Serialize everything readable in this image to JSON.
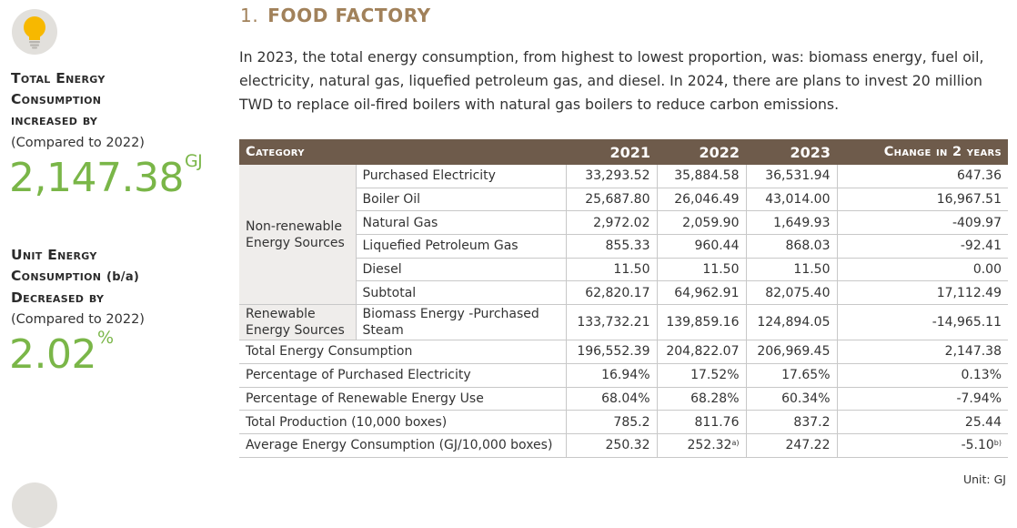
{
  "sidebar": {
    "icon": "lightbulb-icon",
    "kpi1": {
      "line1": "Total Energy",
      "line2": "Consumption",
      "line3": "increased by",
      "sub": "(Compared to 2022)",
      "value": "2,147.38",
      "unit": "GJ"
    },
    "kpi2": {
      "line1": "Unit Energy",
      "line2a": "Consumption",
      "line2b": "(b/a)",
      "line3": "Decreased by",
      "sub": "(Compared to 2022)",
      "value": "2.02",
      "unit": "%"
    }
  },
  "section": {
    "number": "1.",
    "title": "FOOD FACTORY",
    "intro": "In 2023, the total energy consumption, from highest to lowest proportion, was: biomass energy, fuel oil, electricity, natural gas, liquefied petroleum gas, and diesel. In 2024, there are plans to invest 20 million TWD to replace oil-fired boilers with natural gas boilers to reduce carbon emissions."
  },
  "table": {
    "headers": [
      "Category",
      "2021",
      "2022",
      "2023",
      "Change in 2 years"
    ],
    "group1": "Non-renewable Energy Sources",
    "group1_rows": [
      {
        "label": "Purchased Electricity",
        "v2021": "33,293.52",
        "v2022": "35,884.58",
        "v2023": "36,531.94",
        "change": "647.36"
      },
      {
        "label": "Boiler Oil",
        "v2021": "25,687.80",
        "v2022": "26,046.49",
        "v2023": "43,014.00",
        "change": "16,967.51"
      },
      {
        "label": "Natural Gas",
        "v2021": "2,972.02",
        "v2022": "2,059.90",
        "v2023": "1,649.93",
        "change": "-409.97"
      },
      {
        "label": "Liquefied Petroleum Gas",
        "v2021": "855.33",
        "v2022": "960.44",
        "v2023": "868.03",
        "change": "-92.41"
      },
      {
        "label": "Diesel",
        "v2021": "11.50",
        "v2022": "11.50",
        "v2023": "11.50",
        "change": "0.00"
      },
      {
        "label": "Subtotal",
        "v2021": "62,820.17",
        "v2022": "64,962.91",
        "v2023": "82,075.40",
        "change": "17,112.49"
      }
    ],
    "group2": "Renewable Energy Sources",
    "group2_row": {
      "label": "Biomass Energy -Purchased Steam",
      "v2021": "133,732.21",
      "v2022": "139,859.16",
      "v2023": "124,894.05",
      "change": "-14,965.11"
    },
    "summary_rows": [
      {
        "label": "Total Energy Consumption",
        "v2021": "196,552.39",
        "v2022": "204,822.07",
        "v2023": "206,969.45",
        "change": "2,147.38"
      },
      {
        "label": "Percentage of Purchased Electricity",
        "v2021": "16.94%",
        "v2022": "17.52%",
        "v2023": "17.65%",
        "change": "0.13%"
      },
      {
        "label": "Percentage of Renewable Energy Use",
        "v2021": "68.04%",
        "v2022": "68.28%",
        "v2023": "60.34%",
        "change": "-7.94%"
      },
      {
        "label": "Total Production (10,000 boxes)",
        "v2021": "785.2",
        "v2022": "811.76",
        "v2023": "837.2",
        "change": "25.44"
      }
    ],
    "avg_row": {
      "label": "Average Energy Consumption (GJ/10,000 boxes)",
      "v2021": "250.32",
      "v2022": "252.32",
      "v2022_note": "a)",
      "v2023": "247.22",
      "change": "-5.10",
      "change_note": "b)"
    },
    "unit": "Unit: GJ"
  }
}
